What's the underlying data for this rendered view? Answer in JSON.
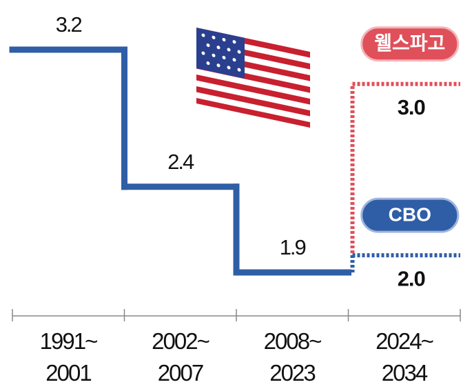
{
  "chart_data": {
    "type": "step",
    "categories": [
      "1991~\n2001",
      "2002~\n2007",
      "2008~\n2023",
      "2024~\n2034"
    ],
    "series": [
      {
        "color": "#2f5ea6",
        "values": [
          3.2,
          2.4,
          1.9,
          null
        ]
      },
      {
        "name": "웰스파고",
        "color": "#e0505a",
        "values": [
          null,
          null,
          null,
          3.0
        ],
        "value_labels": [
          null,
          null,
          null,
          "3.0"
        ]
      },
      {
        "name": "CBO",
        "color": "#2f5ea6",
        "values": [
          null,
          null,
          null,
          2.0
        ],
        "value_labels": [
          null,
          null,
          null,
          "2.0"
        ]
      }
    ]
  }
}
